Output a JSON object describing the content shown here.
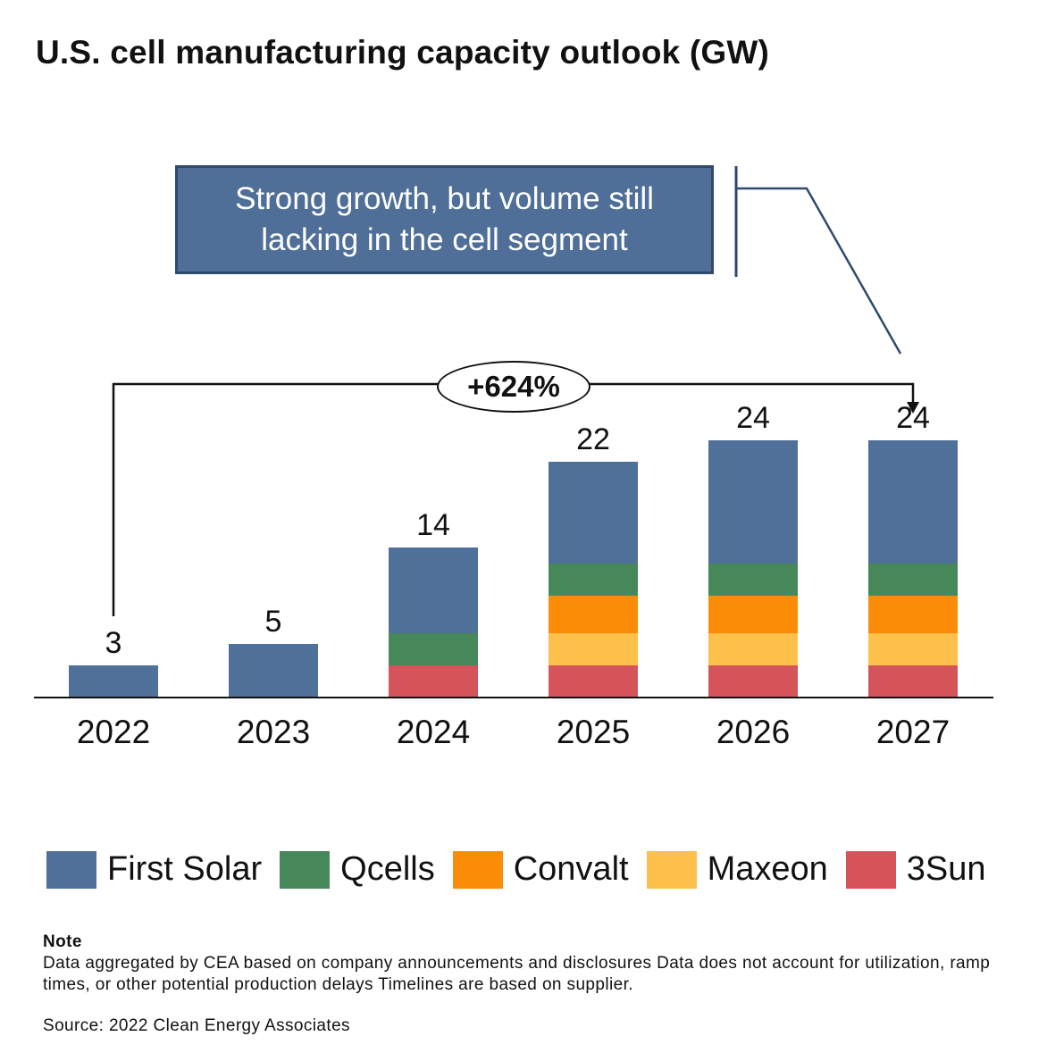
{
  "title": "U.S. cell manufacturing capacity outlook (GW)",
  "callout": "Strong growth, but volume still lacking in the cell segment",
  "growth_label": "+624%",
  "colors": {
    "first_solar": "#4f7199",
    "qcells": "#46885a",
    "convalt": "#fb8c08",
    "maxeon": "#fdc04a",
    "sun3": "#d5545a"
  },
  "chart_data": {
    "type": "bar",
    "stacked": true,
    "title": "U.S. cell manufacturing capacity outlook (GW)",
    "categories": [
      "2022",
      "2023",
      "2024",
      "2025",
      "2026",
      "2027"
    ],
    "totals": [
      3,
      5,
      14,
      22,
      24,
      24
    ],
    "total_labels": [
      "3",
      "5",
      "14",
      "22",
      "24",
      "24"
    ],
    "series": [
      {
        "name": "3Sun",
        "key": "sun3",
        "values": [
          0,
          0,
          3,
          3,
          3,
          3
        ]
      },
      {
        "name": "Maxeon",
        "key": "maxeon",
        "values": [
          0,
          0,
          0,
          3,
          3,
          3
        ]
      },
      {
        "name": "Convalt",
        "key": "convalt",
        "values": [
          0,
          0,
          0,
          3.5,
          3.5,
          3.5
        ]
      },
      {
        "name": "Qcells",
        "key": "qcells",
        "values": [
          0,
          0,
          3,
          3,
          3,
          3
        ]
      },
      {
        "name": "First Solar",
        "key": "first_solar",
        "values": [
          3,
          5,
          8,
          9.5,
          11.5,
          11.5
        ]
      }
    ],
    "ylim": [
      0,
      30
    ],
    "legend_position": "bottom",
    "xlabel": "",
    "ylabel": ""
  },
  "legend": [
    {
      "label": "First Solar",
      "key": "first_solar"
    },
    {
      "label": "Qcells",
      "key": "qcells"
    },
    {
      "label": "Convalt",
      "key": "convalt"
    },
    {
      "label": "Maxeon",
      "key": "maxeon"
    },
    {
      "label": "3Sun",
      "key": "sun3"
    }
  ],
  "note": {
    "heading": "Note",
    "text": "Data aggregated by CEA based on company announcements and disclosures Data does not account for utilization, ramp times, or other potential production delays Timelines are based on supplier."
  },
  "source": "Source: 2022 Clean Energy Associates"
}
